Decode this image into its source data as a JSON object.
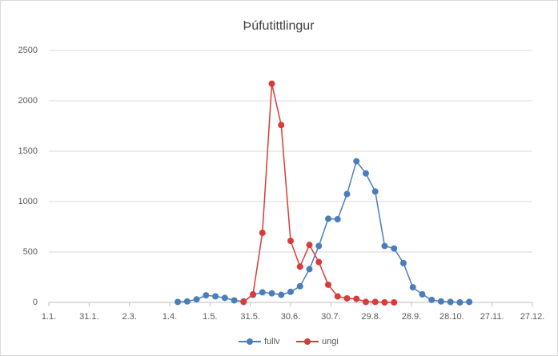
{
  "chart_data": {
    "type": "line",
    "title": "Þúfutittlingur",
    "x": [
      96,
      103,
      110,
      117,
      124,
      131,
      138,
      145,
      152,
      159,
      166,
      173,
      180,
      187,
      194,
      201,
      208,
      215,
      222,
      229,
      236,
      243,
      250,
      257,
      264,
      271,
      278,
      285,
      292,
      299,
      306,
      313
    ],
    "series": [
      {
        "name": "fullv",
        "color": "#4a7ebb",
        "values": [
          5,
          10,
          30,
          70,
          60,
          45,
          20,
          10,
          75,
          100,
          90,
          75,
          105,
          160,
          330,
          560,
          830,
          825,
          1075,
          1400,
          1280,
          1100,
          560,
          535,
          390,
          150,
          80,
          25,
          10,
          5,
          0,
          5
        ]
      },
      {
        "name": "ungi",
        "color": "#d93a3a",
        "values": [
          null,
          null,
          null,
          null,
          null,
          null,
          null,
          5,
          80,
          690,
          2170,
          1760,
          610,
          355,
          570,
          400,
          175,
          60,
          40,
          35,
          5,
          5,
          0,
          0,
          null,
          null,
          null,
          null,
          null,
          null,
          null,
          null
        ]
      }
    ],
    "xlim": [
      0,
      360
    ],
    "xticks": [
      {
        "value": 0,
        "label": "1.1."
      },
      {
        "value": 30,
        "label": "31.1."
      },
      {
        "value": 60,
        "label": "2.3."
      },
      {
        "value": 90,
        "label": "1.4."
      },
      {
        "value": 120,
        "label": "1.5."
      },
      {
        "value": 150,
        "label": "31.5."
      },
      {
        "value": 180,
        "label": "30.6."
      },
      {
        "value": 210,
        "label": "30.7."
      },
      {
        "value": 240,
        "label": "29.8."
      },
      {
        "value": 270,
        "label": "28.9."
      },
      {
        "value": 300,
        "label": "28.10."
      },
      {
        "value": 330,
        "label": "27.11."
      },
      {
        "value": 360,
        "label": "27.12."
      }
    ],
    "ylim": [
      0,
      2500
    ],
    "yticks": [
      0,
      500,
      1000,
      1500,
      2000,
      2500
    ],
    "grid": true,
    "legend": "bottom"
  }
}
